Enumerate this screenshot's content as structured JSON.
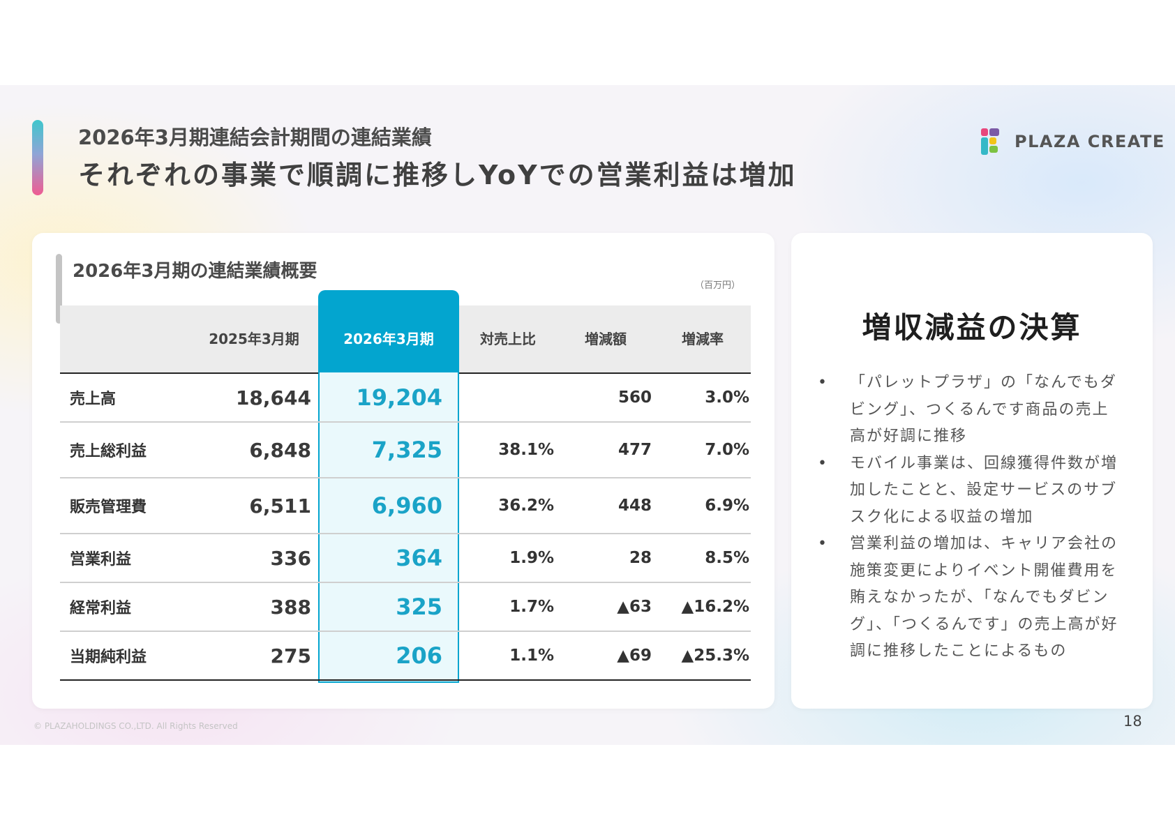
{
  "header": {
    "subtitle": "2026年3月期連結会計期間の連結業績",
    "title": "それぞれの事業で順調に推移しYoYでの営業利益は増加"
  },
  "logo": {
    "text": "PLAZA CREATE",
    "colors": [
      "#e8467c",
      "#7b5aa6",
      "#f2c418",
      "#35b8c7",
      "#7cc242"
    ]
  },
  "table_card": {
    "title": "2026年3月期の連結業績概要",
    "unit": "（百万円）",
    "columns": [
      "",
      "2025年3月期",
      "2026年3月期",
      "対売上比",
      "増減額",
      "増減率"
    ],
    "rows": [
      {
        "label": "売上高",
        "prev": "18,644",
        "cur": "19,204",
        "ratio": "",
        "diff": "560",
        "rate": "3.0%"
      },
      {
        "label": "売上総利益",
        "prev": "6,848",
        "cur": "7,325",
        "ratio": "38.1%",
        "diff": "477",
        "rate": "7.0%"
      },
      {
        "label": "販売管理費",
        "prev": "6,511",
        "cur": "6,960",
        "ratio": "36.2%",
        "diff": "448",
        "rate": "6.9%"
      },
      {
        "label": "営業利益",
        "prev": "336",
        "cur": "364",
        "ratio": "1.9%",
        "diff": "28",
        "rate": "8.5%"
      },
      {
        "label": "経常利益",
        "prev": "388",
        "cur": "325",
        "ratio": "1.7%",
        "diff": "▲63",
        "rate": "▲16.2%"
      },
      {
        "label": "当期純利益",
        "prev": "275",
        "cur": "206",
        "ratio": "1.1%",
        "diff": "▲69",
        "rate": "▲25.3%"
      }
    ],
    "highlight_color": "#03a5cf"
  },
  "summary_card": {
    "title": "増収減益の決算",
    "bullets": [
      "「パレットプラザ」の「なんでもダビング」、つくるんです商品の売上高が好調に推移",
      "モバイル事業は、回線獲得件数が増加したことと、設定サービスのサブスク化による収益の増加",
      "営業利益の増加は、キャリア会社の施策変更によりイベント開催費用を賄えなかったが、「なんでもダビング」、「つくるんです」の売上高が好調に推移したことによるもの"
    ]
  },
  "footer": {
    "copyright": "© PLAZAHOLDINGS CO.,LTD. All Rights Reserved",
    "page": "18"
  }
}
